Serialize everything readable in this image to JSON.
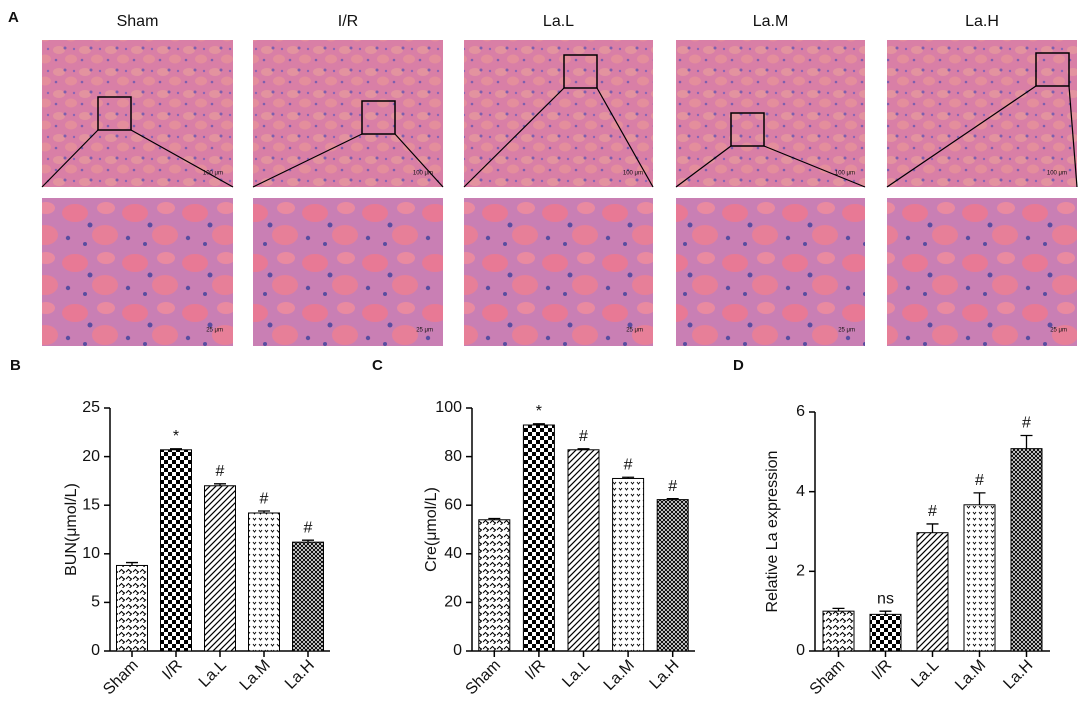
{
  "panel_a": {
    "label": "A",
    "groups": [
      "Sham",
      "I/R",
      "La.L",
      "La.M",
      "La.H"
    ],
    "scale_bar_top": "100 μm",
    "scale_bar_bottom": "25 μm"
  },
  "chart_data": [
    {
      "type": "bar",
      "label": "B",
      "y_label": "BUN(μmol/L)",
      "categories": [
        "Sham",
        "I/R",
        "La.L",
        "La.M",
        "La.H"
      ],
      "values": [
        8.8,
        20.7,
        17.0,
        14.2,
        11.2
      ],
      "errors": [
        0.3,
        0.1,
        0.2,
        0.2,
        0.2
      ],
      "annotations": [
        null,
        "*",
        "#",
        "#",
        "#"
      ],
      "color": "#000000",
      "ylim": [
        0,
        25
      ],
      "yticks": [
        0,
        5,
        10,
        15,
        20,
        25
      ]
    },
    {
      "type": "bar",
      "label": "C",
      "y_label": "Cre(μmol/L)",
      "categories": [
        "Sham",
        "I/R",
        "La.L",
        "La.M",
        "La.H"
      ],
      "values": [
        54,
        93,
        82.8,
        71,
        62.3
      ],
      "errors": [
        0.5,
        0.5,
        0.4,
        0.5,
        0.4
      ],
      "annotations": [
        null,
        "*",
        "#",
        "#",
        "#"
      ],
      "color": "#000000",
      "ylim": [
        0,
        100
      ],
      "yticks": [
        0,
        20,
        40,
        60,
        80,
        100
      ]
    },
    {
      "type": "bar",
      "label": "D",
      "y_label": "Relative La expression",
      "categories": [
        "Sham",
        "I/R",
        "La.L",
        "La.M",
        "La.H"
      ],
      "values": [
        1.0,
        0.92,
        2.97,
        3.67,
        5.08
      ],
      "errors": [
        0.07,
        0.08,
        0.22,
        0.3,
        0.33
      ],
      "annotations": [
        null,
        "ns",
        "#",
        "#",
        "#"
      ],
      "color": "#000000",
      "ylim": [
        0,
        6
      ],
      "yticks": [
        0,
        2,
        4,
        6
      ]
    }
  ]
}
